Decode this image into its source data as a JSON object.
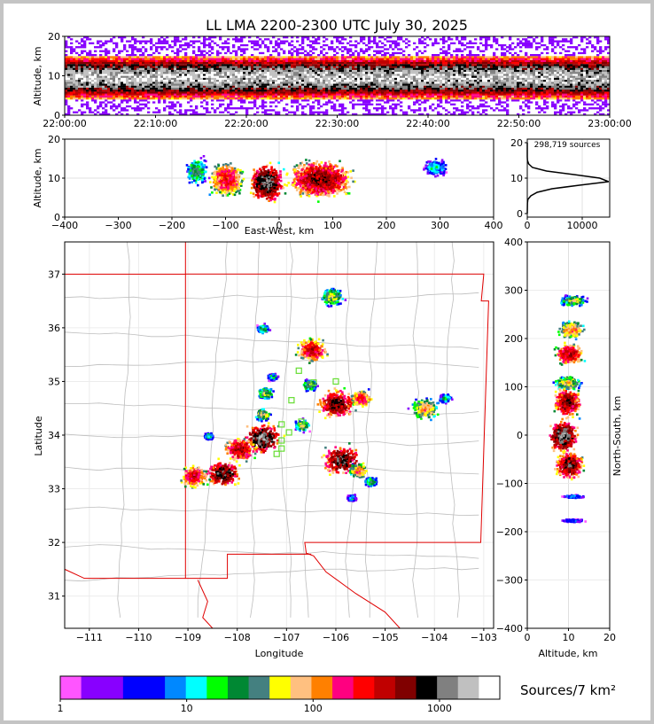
{
  "chart_data": {
    "type": "heatmap",
    "title": "LL LMA 2200-2300 UTC July 30, 2025",
    "panels": {
      "time_height": {
        "ylabel": "Altitude, km",
        "ylim": [
          0,
          20
        ],
        "yticks": [
          "0",
          "10",
          "20"
        ],
        "xticks": [
          "22:00:00",
          "22:10:00",
          "22:20:00",
          "22:30:00",
          "22:40:00",
          "22:50:00",
          "23:00:00"
        ],
        "band_center_km": 9.5,
        "band_range_km": [
          5,
          14
        ]
      },
      "ew_height": {
        "xlabel": "East-West, km",
        "ylabel": "Altitude, km",
        "xlim": [
          -400,
          400
        ],
        "ylim": [
          0,
          20
        ],
        "xticks": [
          "−400",
          "−300",
          "−200",
          "−100",
          "0",
          "100",
          "200",
          "300",
          "400"
        ],
        "yticks": [
          "0",
          "10",
          "20"
        ],
        "clusters": [
          {
            "x": -155,
            "w": 25,
            "z": 12,
            "h": 9,
            "peak": 40
          },
          {
            "x": -100,
            "w": 40,
            "z": 10,
            "h": 11,
            "peak": 300
          },
          {
            "x": -25,
            "w": 40,
            "z": 9,
            "h": 12,
            "peak": 1200
          },
          {
            "x": 75,
            "w": 75,
            "z": 10,
            "h": 12,
            "peak": 600
          },
          {
            "x": 290,
            "w": 30,
            "z": 13,
            "h": 6,
            "peak": 15
          }
        ]
      },
      "altitude_histogram": {
        "annotation": "298,719 sources",
        "xlim": [
          0,
          15000
        ],
        "ylim": [
          0,
          20
        ],
        "xticks": [
          "0",
          "10000"
        ],
        "yticks": [
          "0",
          "10",
          "20"
        ],
        "profile": [
          {
            "alt": 0,
            "count": 0
          },
          {
            "alt": 3,
            "count": 30
          },
          {
            "alt": 4,
            "count": 120
          },
          {
            "alt": 5,
            "count": 650
          },
          {
            "alt": 6,
            "count": 1800
          },
          {
            "alt": 7,
            "count": 4500
          },
          {
            "alt": 8,
            "count": 9500
          },
          {
            "alt": 9,
            "count": 14800
          },
          {
            "alt": 10,
            "count": 13200
          },
          {
            "alt": 11,
            "count": 8500
          },
          {
            "alt": 12,
            "count": 3500
          },
          {
            "alt": 13,
            "count": 950
          },
          {
            "alt": 14,
            "count": 260
          },
          {
            "alt": 15,
            "count": 40
          },
          {
            "alt": 16,
            "count": 5
          },
          {
            "alt": 20,
            "count": 0
          }
        ]
      },
      "map": {
        "xlabel": "Longitude",
        "ylabel": "Latitude",
        "xlim": [
          -111.5,
          -102.8
        ],
        "ylim": [
          30.4,
          37.6
        ],
        "xticks": [
          "−111",
          "−110",
          "−109",
          "−108",
          "−107",
          "−106",
          "−105",
          "−104",
          "−103"
        ],
        "yticks": [
          "31",
          "32",
          "33",
          "34",
          "35",
          "36",
          "37"
        ],
        "storm_cells": [
          {
            "lon": -106.1,
            "lat": 36.6,
            "r": 0.18,
            "peak": 60
          },
          {
            "lon": -107.5,
            "lat": 36.0,
            "r": 0.1,
            "peak": 30
          },
          {
            "lon": -106.5,
            "lat": 35.6,
            "r": 0.25,
            "peak": 400
          },
          {
            "lon": -107.3,
            "lat": 35.1,
            "r": 0.08,
            "peak": 20
          },
          {
            "lon": -107.45,
            "lat": 34.8,
            "r": 0.12,
            "peak": 60
          },
          {
            "lon": -106.55,
            "lat": 34.95,
            "r": 0.12,
            "peak": 50
          },
          {
            "lon": -106.0,
            "lat": 34.6,
            "r": 0.3,
            "peak": 700
          },
          {
            "lon": -105.5,
            "lat": 34.7,
            "r": 0.18,
            "peak": 250
          },
          {
            "lon": -107.5,
            "lat": 34.4,
            "r": 0.12,
            "peak": 80
          },
          {
            "lon": -107.5,
            "lat": 33.95,
            "r": 0.3,
            "peak": 1300
          },
          {
            "lon": -107.95,
            "lat": 33.75,
            "r": 0.25,
            "peak": 500
          },
          {
            "lon": -106.7,
            "lat": 34.2,
            "r": 0.12,
            "peak": 60
          },
          {
            "lon": -108.3,
            "lat": 33.3,
            "r": 0.28,
            "peak": 900
          },
          {
            "lon": -108.9,
            "lat": 33.25,
            "r": 0.22,
            "peak": 400
          },
          {
            "lon": -105.9,
            "lat": 33.55,
            "r": 0.3,
            "peak": 900
          },
          {
            "lon": -105.55,
            "lat": 33.35,
            "r": 0.15,
            "peak": 150
          },
          {
            "lon": -105.3,
            "lat": 33.15,
            "r": 0.1,
            "peak": 40
          },
          {
            "lon": -104.2,
            "lat": 34.5,
            "r": 0.22,
            "peak": 120
          },
          {
            "lon": -103.8,
            "lat": 34.7,
            "r": 0.1,
            "peak": 25
          },
          {
            "lon": -105.7,
            "lat": 32.85,
            "r": 0.08,
            "peak": 15
          },
          {
            "lon": -108.6,
            "lat": 34.0,
            "r": 0.08,
            "peak": 20
          }
        ],
        "stations": [
          [
            -106.75,
            35.2
          ],
          [
            -106.45,
            34.98
          ],
          [
            -106.0,
            35.0
          ],
          [
            -106.9,
            34.65
          ],
          [
            -107.1,
            34.2
          ],
          [
            -106.95,
            34.05
          ],
          [
            -107.1,
            33.9
          ],
          [
            -107.1,
            33.75
          ],
          [
            -107.2,
            33.65
          ],
          [
            -106.7,
            34.25
          ]
        ]
      },
      "ns_height": {
        "xlabel": "Altitude, km",
        "ylabel": "North-South, km",
        "xlim": [
          0,
          20
        ],
        "ylim": [
          -400,
          400
        ],
        "xticks": [
          "0",
          "10",
          "20"
        ],
        "yticks": [
          "−400",
          "−300",
          "−200",
          "−100",
          "0",
          "100",
          "200",
          "300",
          "400"
        ],
        "clusters": [
          {
            "y": 280,
            "h": 15,
            "z": 11,
            "peak": 60
          },
          {
            "y": 220,
            "h": 25,
            "z": 10.5,
            "peak": 150
          },
          {
            "y": 170,
            "h": 30,
            "z": 10,
            "peak": 500
          },
          {
            "y": 110,
            "h": 20,
            "z": 9.5,
            "peak": 80
          },
          {
            "y": 70,
            "h": 40,
            "z": 9.5,
            "peak": 700
          },
          {
            "y": 0,
            "h": 45,
            "z": 8.5,
            "peak": 1300
          },
          {
            "y": -60,
            "h": 40,
            "z": 10,
            "peak": 800
          },
          {
            "y": -125,
            "h": 5,
            "z": 11,
            "peak": 10
          },
          {
            "y": -175,
            "h": 5,
            "z": 11,
            "peak": 8
          }
        ]
      }
    },
    "colorbar": {
      "label": "Sources/7 km²",
      "scale": "log",
      "range": [
        1,
        3000
      ],
      "ticks": [
        "1",
        "10",
        "100",
        "1000"
      ],
      "colors": [
        "#ff55ff",
        "#8800ff",
        "#8800ff",
        "#0000ff",
        "#0000ff",
        "#0088ff",
        "#00ffff",
        "#00ff00",
        "#008833",
        "#448080",
        "#ffff00",
        "#ffc080",
        "#ff8000",
        "#ff0080",
        "#ff0000",
        "#c00000",
        "#800000",
        "#000000",
        "#808080",
        "#c0c0c0",
        "#ffffff"
      ]
    }
  }
}
